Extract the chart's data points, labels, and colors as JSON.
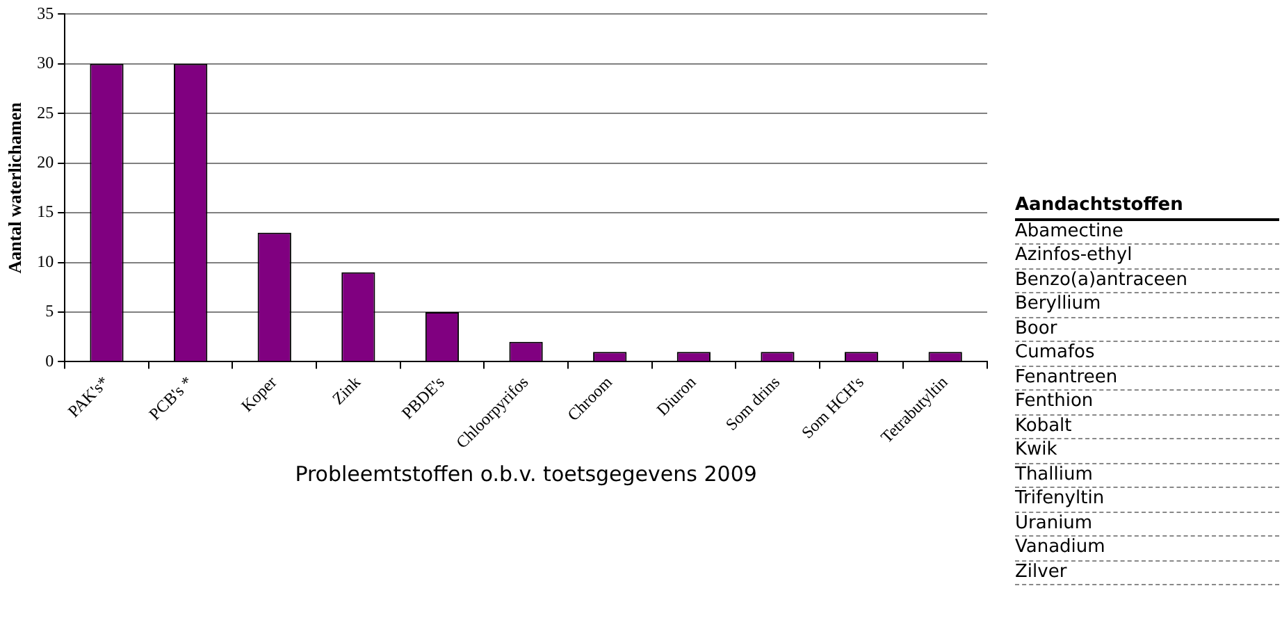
{
  "chart_data": [
    {
      "type": "bar",
      "xlabel": "Probleemtstoffen o.b.v. toetsgegevens 2009",
      "ylabel": "Aantal waterlichamen",
      "categories": [
        "PAK's*",
        "PCB's *",
        "Koper",
        "Zink",
        "PBDE's",
        "Chloorpyrifos",
        "Chroom",
        "Diuron",
        "Som drins",
        "Som HCH's",
        "Tetrabutyltin"
      ],
      "values": [
        30,
        30,
        13,
        9,
        5,
        2,
        1,
        1,
        1,
        1,
        1
      ],
      "color": "#800080",
      "ylim": [
        0,
        35
      ],
      "yticks": [
        0,
        5,
        10,
        15,
        20,
        25,
        30,
        35
      ],
      "grid": "y",
      "legend": false
    },
    {
      "type": "other",
      "title": "Aandachtstoffen",
      "annotations": [
        "Abamectine",
        "Azinfos-ethyl",
        "Benzo(a)antraceen",
        "Beryllium",
        "Boor",
        "Cumafos",
        "Fenantreen",
        "Fenthion",
        "Kobalt",
        "Kwik",
        "Thallium",
        "Trifenyltin",
        "Uranium",
        "Vanadium",
        "Zilver"
      ]
    }
  ]
}
